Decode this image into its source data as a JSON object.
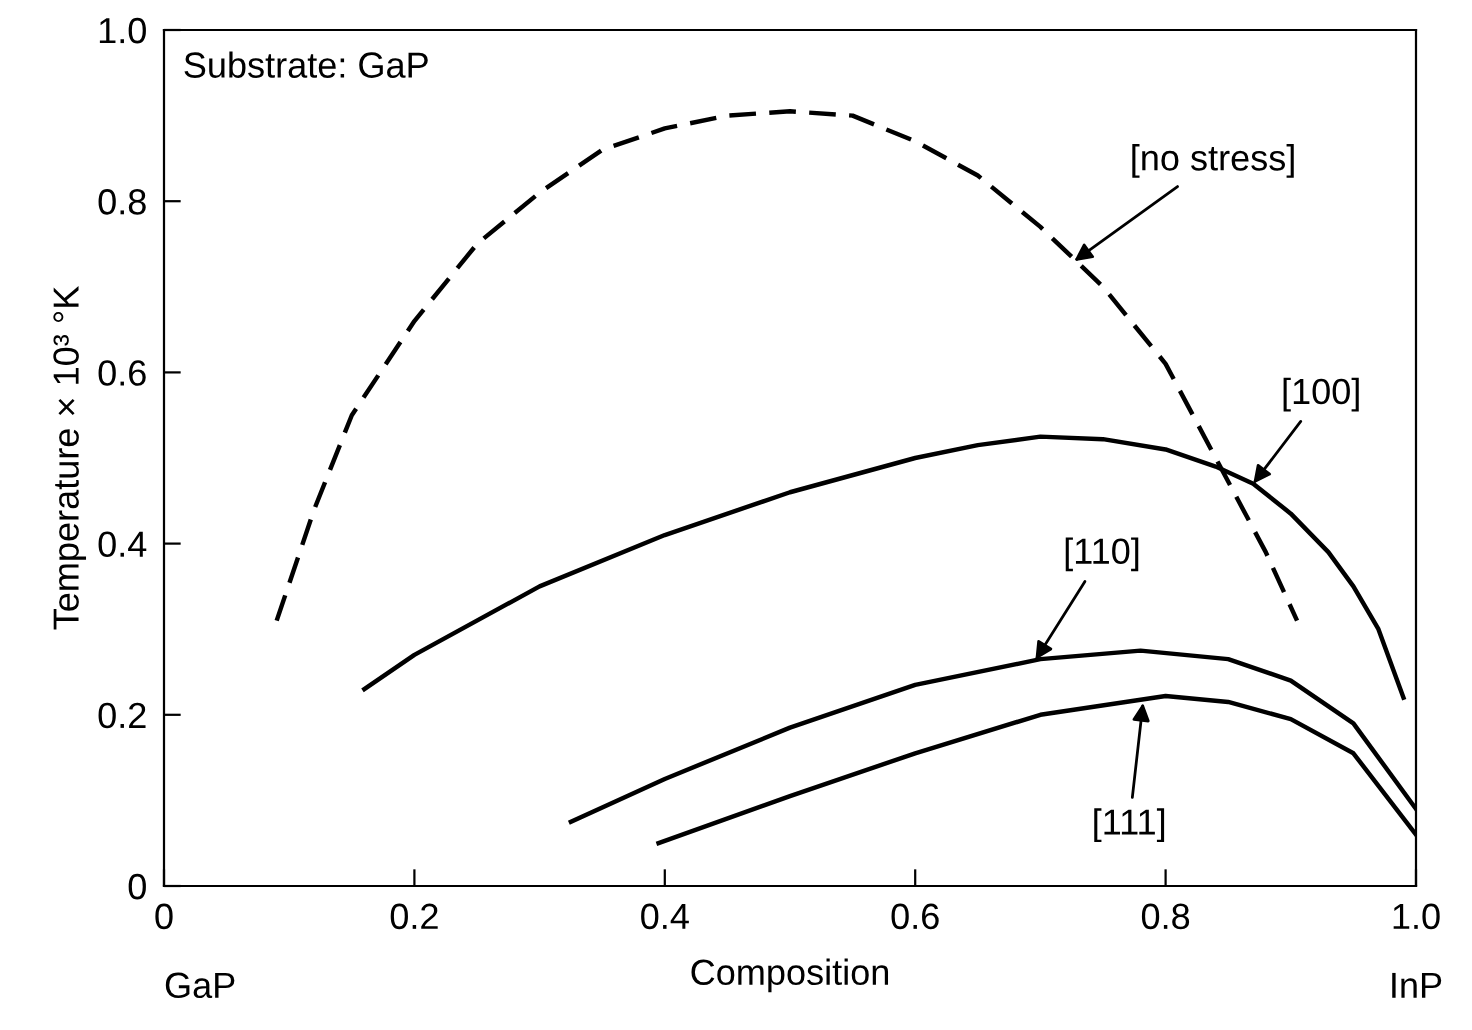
{
  "chart_data": {
    "type": "line",
    "xlabel": "Composition",
    "ylabel": "Temperature × 10³ °K",
    "xlim": [
      0,
      1.0
    ],
    "ylim": [
      0,
      1.0
    ],
    "xticks": [
      0,
      0.2,
      0.4,
      0.6,
      0.8,
      {
        "value": 1.0,
        "label": "1.0"
      }
    ],
    "yticks": [
      0,
      0.2,
      0.4,
      0.6,
      0.8,
      {
        "value": 1.0,
        "label": "1.0"
      }
    ],
    "grid": false,
    "legend": false,
    "marker": "none",
    "series": [
      {
        "color": "#000000",
        "line_style": "dashed",
        "x": [
          0.09,
          0.12,
          0.15,
          0.2,
          0.25,
          0.3,
          0.35,
          0.4,
          0.45,
          0.5,
          0.55,
          0.6,
          0.65,
          0.7,
          0.75,
          0.8,
          0.84,
          0.88,
          0.905
        ],
        "values": [
          0.31,
          0.44,
          0.55,
          0.66,
          0.75,
          0.81,
          0.86,
          0.885,
          0.9,
          0.905,
          0.9,
          0.87,
          0.83,
          0.77,
          0.7,
          0.61,
          0.5,
          0.39,
          0.31
        ]
      },
      {
        "color": "#000000",
        "line_style": "solid",
        "x": [
          0.16,
          0.2,
          0.3,
          0.4,
          0.5,
          0.6,
          0.65,
          0.7,
          0.75,
          0.8,
          0.84,
          0.87,
          0.9,
          0.93,
          0.95,
          0.97,
          0.99
        ],
        "values": [
          0.23,
          0.27,
          0.35,
          0.41,
          0.46,
          0.5,
          0.515,
          0.525,
          0.522,
          0.51,
          0.49,
          0.47,
          0.435,
          0.39,
          0.35,
          0.3,
          0.22
        ]
      },
      {
        "color": "#000000",
        "line_style": "solid",
        "x": [
          0.325,
          0.4,
          0.5,
          0.6,
          0.7,
          0.78,
          0.85,
          0.9,
          0.95,
          1.0
        ],
        "values": [
          0.075,
          0.125,
          0.185,
          0.235,
          0.265,
          0.275,
          0.265,
          0.24,
          0.19,
          0.09
        ]
      },
      {
        "color": "#000000",
        "line_style": "solid",
        "x": [
          0.395,
          0.5,
          0.6,
          0.7,
          0.8,
          0.85,
          0.9,
          0.95,
          1.0
        ],
        "values": [
          0.05,
          0.105,
          0.155,
          0.2,
          0.222,
          0.215,
          0.195,
          0.155,
          0.06
        ]
      }
    ],
    "annotations": [
      {
        "text": "[no stress]",
        "x": 0.727,
        "y": 0.73
      },
      {
        "text": "[100]",
        "x": 0.87,
        "y": 0.47
      },
      {
        "text": "[110]",
        "x": 0.696,
        "y": 0.264
      },
      {
        "text": "[111]",
        "x": 0.782,
        "y": 0.214
      },
      "Substrate: GaP",
      "GaP",
      "InP"
    ]
  }
}
